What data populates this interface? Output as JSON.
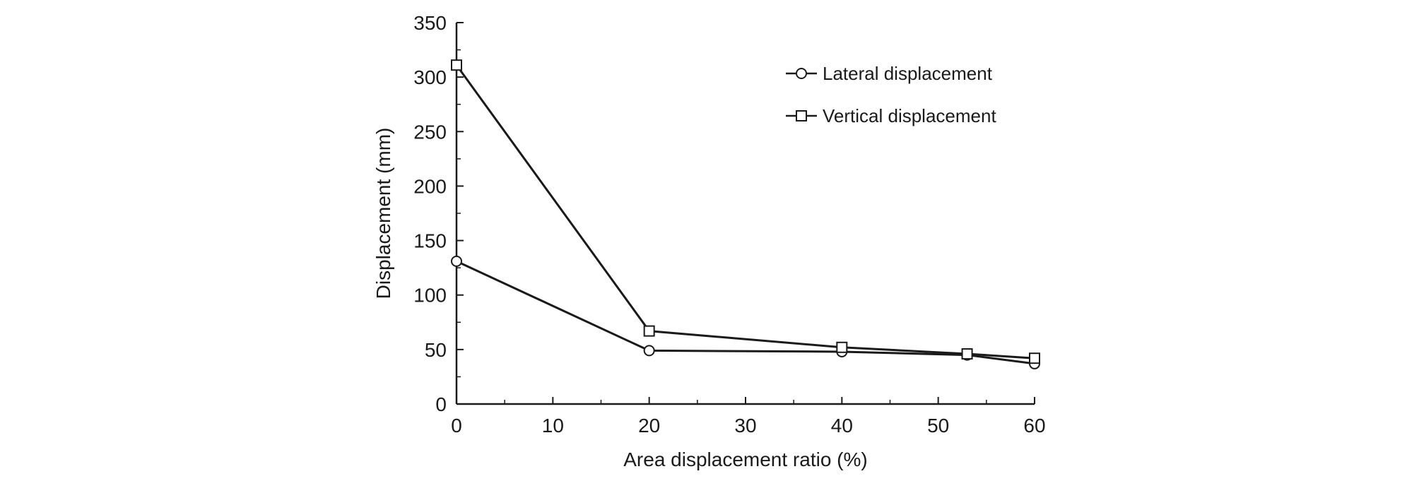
{
  "chart_data": {
    "type": "line",
    "title": "",
    "xlabel": "Area displacement ratio (%)",
    "ylabel": "Displacement (mm)",
    "xlim": [
      0,
      60
    ],
    "ylim": [
      0,
      350
    ],
    "x_ticks": [
      "0",
      "10",
      "20",
      "30",
      "40",
      "50",
      "60"
    ],
    "y_ticks": [
      "0",
      "50",
      "100",
      "150",
      "200",
      "250",
      "300",
      "350"
    ],
    "grid": false,
    "legend_position": "top-right",
    "series": [
      {
        "name": "Lateral displacement",
        "marker": "circle",
        "x": [
          0,
          20,
          40,
          53,
          60
        ],
        "y": [
          131,
          49,
          48,
          45,
          37
        ]
      },
      {
        "name": "Vertical displacement",
        "marker": "square",
        "x": [
          0,
          20,
          40,
          53,
          60
        ],
        "y": [
          311,
          67,
          52,
          46,
          42
        ]
      }
    ],
    "colors": {
      "line": "#1a1a1a",
      "marker_fill": "#ffffff",
      "background": "#ffffff"
    }
  }
}
